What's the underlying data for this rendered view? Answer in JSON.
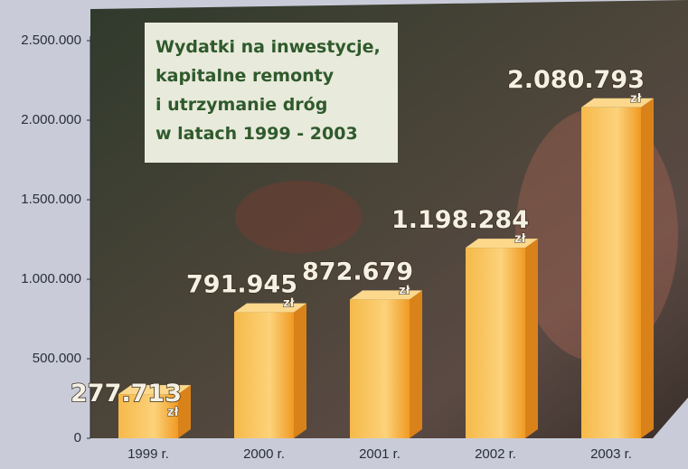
{
  "chart_data": {
    "type": "bar",
    "title": [
      "Wydatki na inwestycje,",
      "kapitalne remonty",
      "i utrzymanie dróg",
      "w latach 1999 - 2003"
    ],
    "categories": [
      "1999 r.",
      "2000 r.",
      "2001 r.",
      "2002 r.",
      "2003 r."
    ],
    "values": [
      277713,
      791945,
      872679,
      1198284,
      2080793
    ],
    "value_labels": [
      "277.713",
      "791.945",
      "872.679",
      "1.198.284",
      "2.080.793"
    ],
    "unit": "zł",
    "color": "#f4a62a",
    "ylim": [
      0,
      2500000
    ],
    "yticks": [
      {
        "value": 0,
        "label": "0"
      },
      {
        "value": 500000,
        "label": "500.000"
      },
      {
        "value": 1000000,
        "label": "1.000.000"
      },
      {
        "value": 1500000,
        "label": "1.500.000"
      },
      {
        "value": 2000000,
        "label": "2.000.000"
      },
      {
        "value": 2500000,
        "label": "2.500.000"
      }
    ],
    "grid": false
  }
}
